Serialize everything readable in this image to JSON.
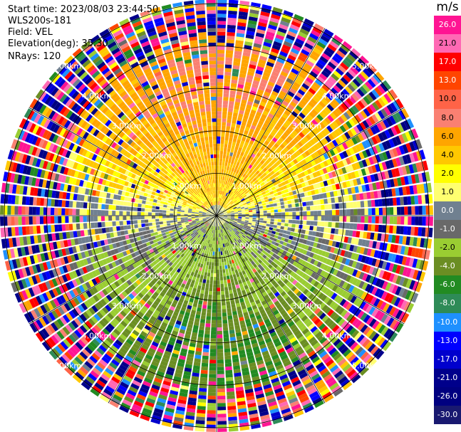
{
  "info": {
    "start_time": "Start time: 2023/08/03 23:44:50",
    "site": "WLS200s-181",
    "field": "Field: VEL",
    "elevation": "Elevation(deg): 35.30",
    "nrays": "NRays: 120"
  },
  "colorbar": {
    "unit": "m/s",
    "labels": [
      "26.0",
      "21.0",
      "17.0",
      "13.0",
      "10.0",
      "8.0",
      "6.0",
      "4.0",
      "2.0",
      "1.0",
      "0.0",
      "-1.0",
      "-2.0",
      "-4.0",
      "-6.0",
      "-8.0",
      "-10.0",
      "-13.0",
      "-17.0",
      "-21.0",
      "-26.0",
      "-30.0"
    ],
    "colors": [
      "#ff1493",
      "#ff69b4",
      "#ff0000",
      "#ff4500",
      "#ff6347",
      "#fa8072",
      "#ffa500",
      "#ffc800",
      "#ffff00",
      "#ffff70",
      "#708090",
      "#696969",
      "#9acd32",
      "#6b8e23",
      "#228b22",
      "#2e8b57",
      "#1e90ff",
      "#0000ff",
      "#0000cd",
      "#00008b",
      "#000080",
      "#191970"
    ]
  },
  "chart_data": {
    "type": "ppi",
    "field": "VEL",
    "nrays": 120,
    "elevation_deg": 35.3,
    "range_ring_labels": [
      "1.00km",
      "2.00km",
      "3.00km",
      "4.00km",
      "5.00km"
    ],
    "range_rings_km": [
      1,
      2,
      3,
      4,
      5
    ],
    "max_range_km": 5.1,
    "spokes_deg": [
      0,
      30,
      60,
      90,
      120,
      150,
      180,
      210,
      240,
      270,
      300,
      330
    ],
    "velocity_range": [
      -30,
      30
    ],
    "regions": {
      "north_inner": "positive (yellow/orange, 2 to 6 m/s)",
      "south_inner": "negative (green, -2 to -6 m/s)",
      "center_band": "near zero (gray)",
      "outer_beyond_3.5km": "noise (random colors)"
    }
  }
}
